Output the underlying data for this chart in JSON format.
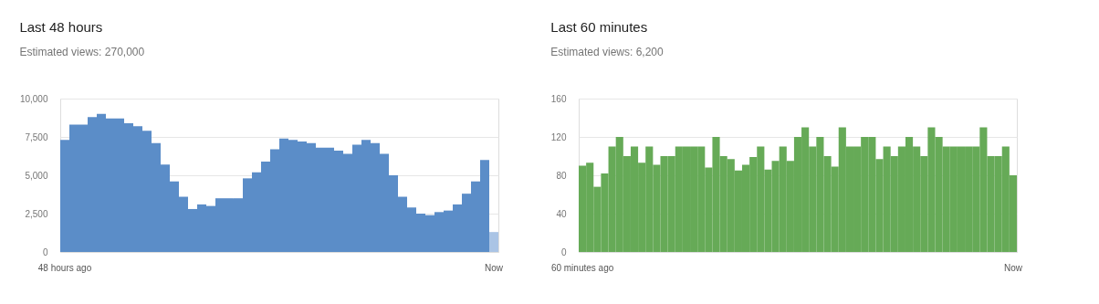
{
  "chart_data": [
    {
      "type": "bar",
      "title": "Last 48 hours",
      "subtitle": "Estimated views: 270,000",
      "categories": [
        "48 hours ago",
        null,
        null,
        null,
        null,
        null,
        null,
        null,
        null,
        null,
        null,
        null,
        null,
        null,
        null,
        null,
        null,
        null,
        null,
        null,
        null,
        null,
        null,
        null,
        null,
        null,
        null,
        null,
        null,
        null,
        null,
        null,
        null,
        null,
        null,
        null,
        null,
        null,
        null,
        null,
        null,
        null,
        null,
        null,
        null,
        null,
        null,
        "Now"
      ],
      "values": [
        7300,
        8300,
        8300,
        8800,
        9000,
        8700,
        8700,
        8400,
        8200,
        7900,
        7100,
        5700,
        4600,
        3600,
        2800,
        3100,
        3000,
        3500,
        3500,
        3500,
        4800,
        5200,
        5900,
        6700,
        7400,
        7300,
        7200,
        7100,
        6800,
        6800,
        6600,
        6400,
        7000,
        7300,
        7100,
        6400,
        5000,
        3600,
        2900,
        2500,
        2400,
        2600,
        2700,
        3100,
        3800,
        4600,
        6000,
        1300
      ],
      "colors": [
        "#5b8dc8",
        "#5b8dc8",
        "#5b8dc8",
        "#5b8dc8",
        "#5b8dc8",
        "#5b8dc8",
        "#5b8dc8",
        "#5b8dc8",
        "#5b8dc8",
        "#5b8dc8",
        "#5b8dc8",
        "#5b8dc8",
        "#5b8dc8",
        "#5b8dc8",
        "#5b8dc8",
        "#5b8dc8",
        "#5b8dc8",
        "#5b8dc8",
        "#5b8dc8",
        "#5b8dc8",
        "#5b8dc8",
        "#5b8dc8",
        "#5b8dc8",
        "#5b8dc8",
        "#5b8dc8",
        "#5b8dc8",
        "#5b8dc8",
        "#5b8dc8",
        "#5b8dc8",
        "#5b8dc8",
        "#5b8dc8",
        "#5b8dc8",
        "#5b8dc8",
        "#5b8dc8",
        "#5b8dc8",
        "#5b8dc8",
        "#5b8dc8",
        "#5b8dc8",
        "#5b8dc8",
        "#5b8dc8",
        "#5b8dc8",
        "#5b8dc8",
        "#5b8dc8",
        "#5b8dc8",
        "#5b8dc8",
        "#5b8dc8",
        "#5b8dc8",
        "#aac4e5"
      ],
      "ylim": [
        0,
        10000
      ],
      "yticks": [
        {
          "value": 0,
          "label": "0"
        },
        {
          "value": 2500,
          "label": "2,500"
        },
        {
          "value": 5000,
          "label": "5,000"
        },
        {
          "value": 7500,
          "label": "7,500"
        },
        {
          "value": 10000,
          "label": "10,000"
        }
      ],
      "grid": "y"
    },
    {
      "type": "bar",
      "title": "Last 60 minutes",
      "subtitle": "Estimated views: 6,200",
      "categories": [
        "60 minutes ago",
        null,
        null,
        null,
        null,
        null,
        null,
        null,
        null,
        null,
        null,
        null,
        null,
        null,
        null,
        null,
        null,
        null,
        null,
        null,
        null,
        null,
        null,
        null,
        null,
        null,
        null,
        null,
        null,
        null,
        null,
        null,
        null,
        null,
        null,
        null,
        null,
        null,
        null,
        null,
        null,
        null,
        null,
        null,
        null,
        null,
        null,
        null,
        null,
        null,
        null,
        null,
        null,
        null,
        null,
        null,
        null,
        null,
        "Now"
      ],
      "values": [
        90,
        93,
        68,
        82,
        110,
        120,
        100,
        110,
        93,
        110,
        91,
        100,
        100,
        110,
        110,
        110,
        110,
        88,
        120,
        100,
        97,
        85,
        91,
        99,
        110,
        86,
        95,
        110,
        95,
        120,
        130,
        110,
        120,
        100,
        89,
        130,
        110,
        110,
        120,
        120,
        97,
        110,
        100,
        110,
        120,
        110,
        100,
        130,
        120,
        110,
        110,
        110,
        110,
        110,
        130,
        100,
        100,
        110,
        80
      ],
      "color": "#66aa57",
      "ylim": [
        0,
        160
      ],
      "yticks": [
        0,
        40,
        80,
        120,
        160
      ],
      "grid": "y"
    }
  ]
}
